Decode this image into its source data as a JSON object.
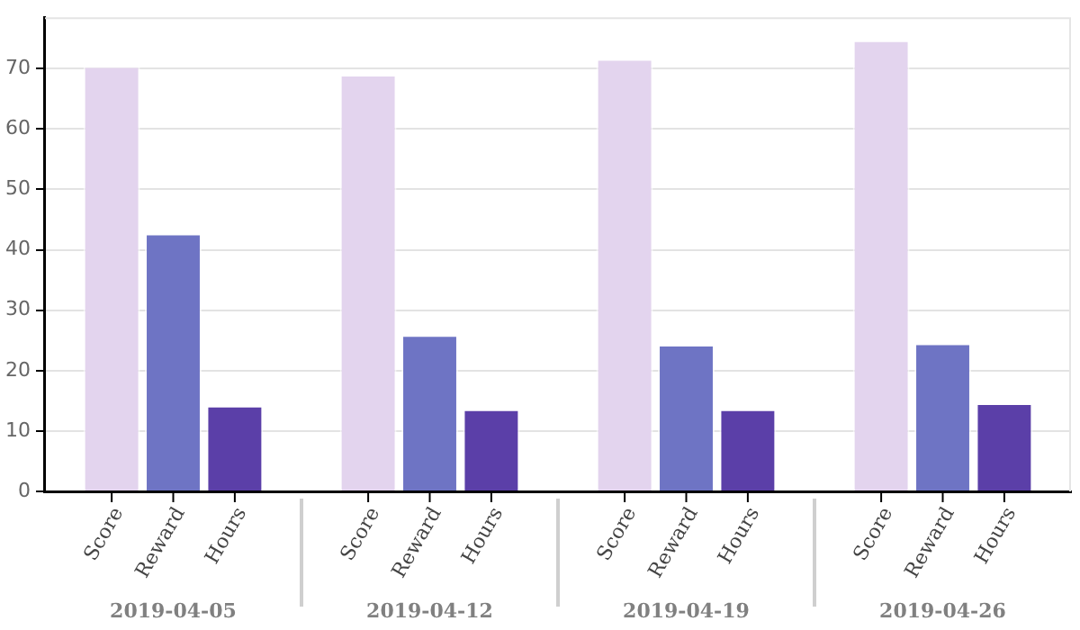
{
  "chart_data": {
    "type": "bar",
    "categories": [
      "2019-04-05",
      "2019-04-12",
      "2019-04-19",
      "2019-04-26"
    ],
    "series": [
      {
        "name": "Score",
        "color": "#e3d4ee",
        "values": [
          70.4,
          69.0,
          71.6,
          74.7
        ]
      },
      {
        "name": "Reward",
        "color": "#6e74c4",
        "values": [
          42.7,
          25.9,
          24.3,
          24.5
        ]
      },
      {
        "name": "Hours",
        "color": "#5b3fa8",
        "values": [
          14.2,
          13.6,
          13.6,
          14.6
        ]
      }
    ],
    "ylim": [
      0,
      78.5
    ],
    "yticks": [
      0,
      10,
      20,
      30,
      40,
      50,
      60,
      70
    ],
    "grid": "y",
    "legend": false
  }
}
